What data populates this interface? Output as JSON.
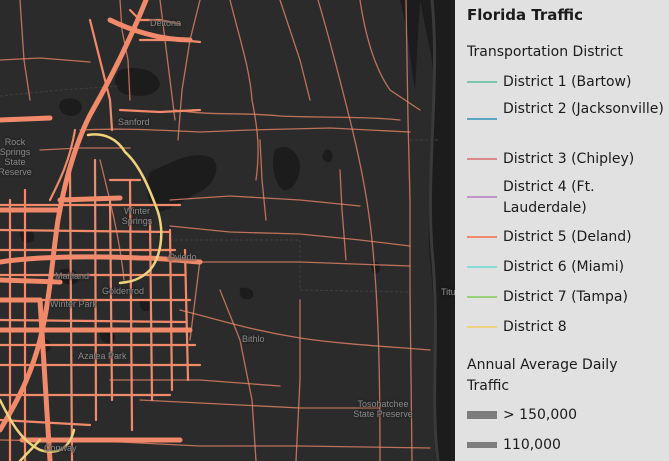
{
  "legend": {
    "title": "Florida Traffic",
    "district_heading": "Transportation District",
    "districts": [
      {
        "label": "District 1 (Bartow)",
        "color": "#7ac7ad"
      },
      {
        "label": "District 2 (Jacksonville)",
        "color": "#5ea3c4"
      },
      {
        "label": "District 3 (Chipley)",
        "color": "#d98b8b"
      },
      {
        "label": "District 4 (Ft. Lauderdale)",
        "color": "#c195c9"
      },
      {
        "label": "District 5 (Deland)",
        "color": "#f08a6a"
      },
      {
        "label": "District 6 (Miami)",
        "color": "#86dcd7"
      },
      {
        "label": "District 7 (Tampa)",
        "color": "#98d37c"
      },
      {
        "label": "District 8",
        "color": "#f0d27e"
      }
    ],
    "traffic_heading": "Annual Average Daily Traffic",
    "traffic_classes": [
      {
        "label": "> 150,000"
      },
      {
        "label": "110,000"
      }
    ]
  },
  "map": {
    "background_color": "#2b2b2b",
    "road_color": "#f08a6a",
    "toll_road_color": "#f0d27e",
    "water_color": "#1c1c1c",
    "places": {
      "deltona": "Deltona",
      "sanford": "Sanford",
      "rock_springs": "Rock Springs State Reserve",
      "winter_springs": "Winter Springs",
      "oviedo": "Oviedo",
      "maitland": "Maitland",
      "winter_park": "Winter Park",
      "goldenrod": "Goldenrod",
      "bithlo": "Bithlo",
      "azalea_park": "Azalea Park",
      "titusville": "Titusville",
      "tosohatchee": "Tosohatchee State Preserve",
      "conway": "Conway"
    }
  }
}
